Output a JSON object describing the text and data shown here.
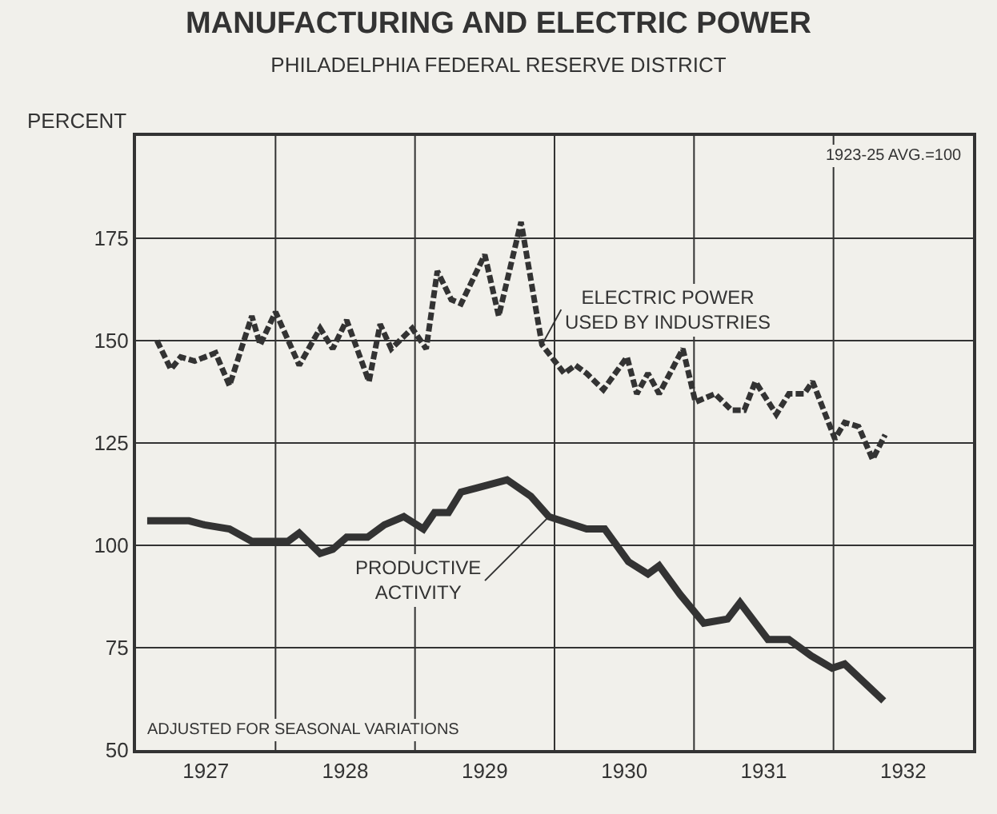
{
  "chart_data": {
    "type": "line",
    "title": "MANUFACTURING AND ELECTRIC POWER",
    "subtitle": "PHILADELPHIA FEDERAL RESERVE DISTRICT",
    "ylabel": "PERCENT",
    "annotations": [
      "1923-25 AVG.=100",
      "ADJUSTED FOR SEASONAL VARIATIONS"
    ],
    "xlim": [
      1927,
      1933
    ],
    "ylim": [
      50,
      200
    ],
    "xticks": [
      {
        "value": 1927.5,
        "label": "1927"
      },
      {
        "value": 1928,
        "label": null
      },
      {
        "value": 1928.5,
        "label": "1928"
      },
      {
        "value": 1929,
        "label": null
      },
      {
        "value": 1929.5,
        "label": "1929"
      },
      {
        "value": 1930,
        "label": null
      },
      {
        "value": 1930.5,
        "label": "1930"
      },
      {
        "value": 1931,
        "label": null
      },
      {
        "value": 1931.5,
        "label": "1931"
      },
      {
        "value": 1932,
        "label": null
      },
      {
        "value": 1932.5,
        "label": "1932"
      }
    ],
    "yticks": [
      50,
      75,
      100,
      125,
      150,
      175,
      {
        "value": 200,
        "label": null
      }
    ],
    "grid": true,
    "legend": false,
    "marker": "none",
    "series": [
      {
        "name": "ELECTRIC POWER\nUSED BY INDUSTRIES",
        "color": "#333333",
        "line_style": "dashed",
        "x": [
          1927.15,
          1927.25,
          1927.32,
          1927.42,
          1927.57,
          1927.67,
          1927.83,
          1927.89,
          1928.0,
          1928.17,
          1928.32,
          1928.41,
          1928.51,
          1928.67,
          1928.75,
          1928.83,
          1928.98,
          1929.08,
          1929.16,
          1929.26,
          1929.33,
          1929.5,
          1929.6,
          1929.76,
          1929.91,
          1930.07,
          1930.15,
          1930.23,
          1930.35,
          1930.52,
          1930.59,
          1930.67,
          1930.75,
          1930.92,
          1931.01,
          1931.15,
          1931.27,
          1931.36,
          1931.44,
          1931.59,
          1931.68,
          1931.79,
          1931.85,
          1932.01,
          1932.08,
          1932.18,
          1932.28,
          1932.37
        ],
        "values": [
          150,
          143,
          146,
          145,
          147,
          139,
          156,
          149,
          157,
          144,
          153,
          148,
          155,
          140,
          154,
          148,
          153,
          148,
          167,
          160,
          159,
          171,
          156,
          179,
          149,
          142,
          144,
          142,
          138,
          146,
          137,
          142,
          137,
          148,
          135,
          137,
          133,
          133,
          140,
          132,
          137,
          137,
          140,
          126,
          130,
          129,
          121,
          127
        ]
      },
      {
        "name": "PRODUCTIVE\nACTIVITY",
        "color": "#333333",
        "line_style": "solid",
        "x": [
          1927.08,
          1927.38,
          1927.49,
          1927.67,
          1927.83,
          1928.09,
          1928.17,
          1928.32,
          1928.41,
          1928.51,
          1928.66,
          1928.78,
          1928.92,
          1929.06,
          1929.14,
          1929.24,
          1929.33,
          1929.44,
          1929.66,
          1929.83,
          1929.96,
          1930.23,
          1930.36,
          1930.53,
          1930.67,
          1930.75,
          1930.9,
          1931.07,
          1931.24,
          1931.33,
          1931.53,
          1931.68,
          1931.84,
          1931.99,
          1932.08,
          1932.36
        ],
        "values": [
          106,
          106,
          105,
          104,
          101,
          101,
          103,
          98,
          99,
          102,
          102,
          105,
          107,
          104,
          108,
          108,
          113,
          114,
          116,
          112,
          107,
          104,
          104,
          96,
          93,
          95,
          88,
          81,
          82,
          86,
          77,
          77,
          73,
          70,
          71,
          62
        ]
      }
    ]
  }
}
